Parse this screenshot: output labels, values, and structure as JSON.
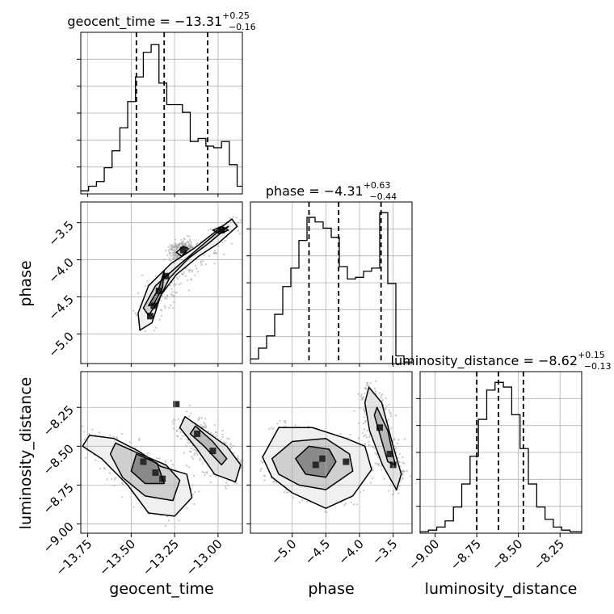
{
  "chart_data": {
    "type": "corner",
    "parameters": [
      "geocent_time",
      "phase",
      "luminosity_distance"
    ],
    "grid": true,
    "diagonal": [
      {
        "parameter": "geocent_time",
        "title": "geocent_time = −13.31",
        "title_sup": "+0.25",
        "title_sub": "−0.16",
        "xlim": [
          -13.79,
          -12.86
        ],
        "quantiles": [
          -13.47,
          -13.31,
          -13.06
        ],
        "bin_edges": [
          -13.79,
          -13.745,
          -13.7,
          -13.655,
          -13.61,
          -13.565,
          -13.52,
          -13.475,
          -13.43,
          -13.385,
          -13.34,
          -13.295,
          -13.25,
          -13.205,
          -13.16,
          -13.115,
          -13.07,
          -13.025,
          -12.98,
          -12.935,
          -12.89,
          -12.86
        ],
        "counts": [
          0.02,
          0.05,
          0.08,
          0.17,
          0.28,
          0.43,
          0.6,
          0.76,
          0.92,
          0.97,
          0.72,
          0.58,
          0.58,
          0.53,
          0.34,
          0.36,
          0.31,
          0.3,
          0.34,
          0.19,
          0.05
        ]
      },
      {
        "parameter": "phase",
        "title": "phase = −4.31",
        "title_sup": "+0.63",
        "title_sub": "−0.44",
        "xlim": [
          -5.62,
          -3.22
        ],
        "quantiles": [
          -4.75,
          -4.31,
          -3.68
        ],
        "bin_edges": [
          -5.62,
          -5.5,
          -5.38,
          -5.26,
          -5.14,
          -5.02,
          -4.9,
          -4.78,
          -4.66,
          -4.54,
          -4.42,
          -4.3,
          -4.18,
          -4.06,
          -3.94,
          -3.82,
          -3.7,
          -3.58,
          -3.46,
          -3.34,
          -3.22
        ],
        "counts": [
          0.03,
          0.1,
          0.18,
          0.32,
          0.5,
          0.62,
          0.8,
          0.95,
          0.92,
          0.88,
          0.82,
          0.63,
          0.55,
          0.56,
          0.6,
          0.62,
          0.98,
          0.52,
          0.05,
          0.01
        ]
      },
      {
        "parameter": "luminosity_distance",
        "title": "luminosity_distance = −8.62",
        "title_sup": "+0.15",
        "title_sub": "−0.13",
        "xlim": [
          -9.09,
          -8.12
        ],
        "quantiles": [
          -8.75,
          -8.62,
          -8.47
        ],
        "bin_edges": [
          -9.09,
          -9.04,
          -8.99,
          -8.94,
          -8.89,
          -8.84,
          -8.79,
          -8.74,
          -8.69,
          -8.64,
          -8.59,
          -8.54,
          -8.49,
          -8.44,
          -8.39,
          -8.34,
          -8.29,
          -8.24,
          -8.19,
          -8.14,
          -8.12
        ],
        "counts": [
          0.01,
          0.02,
          0.04,
          0.08,
          0.17,
          0.32,
          0.5,
          0.74,
          0.93,
          0.98,
          0.95,
          0.77,
          0.55,
          0.32,
          0.17,
          0.09,
          0.04,
          0.02,
          0.01,
          0.01
        ]
      }
    ],
    "pairs": [
      {
        "x": "geocent_time",
        "y": "phase",
        "xlim": [
          -13.79,
          -12.86
        ],
        "ylim": [
          -5.4,
          -3.22
        ],
        "ticks_y": [
          -5.0,
          -4.5,
          -4.0,
          -3.5
        ],
        "contours": [
          [
            [
              -13.46,
              -4.72
            ],
            [
              -13.4,
              -4.35
            ],
            [
              -13.27,
              -4.05
            ],
            [
              -13.14,
              -3.85
            ],
            [
              -13.02,
              -3.63
            ],
            [
              -12.92,
              -3.45
            ],
            [
              -12.89,
              -3.55
            ],
            [
              -13.0,
              -3.78
            ],
            [
              -13.11,
              -3.95
            ],
            [
              -13.24,
              -4.2
            ],
            [
              -13.33,
              -4.48
            ],
            [
              -13.38,
              -4.85
            ],
            [
              -13.45,
              -4.95
            ]
          ],
          [
            [
              -13.43,
              -4.65
            ],
            [
              -13.36,
              -4.35
            ],
            [
              -13.24,
              -4.1
            ],
            [
              -13.13,
              -3.88
            ],
            [
              -13.0,
              -3.62
            ],
            [
              -12.94,
              -3.55
            ],
            [
              -13.05,
              -3.77
            ],
            [
              -13.17,
              -3.98
            ],
            [
              -13.28,
              -4.25
            ],
            [
              -13.35,
              -4.58
            ],
            [
              -13.4,
              -4.75
            ]
          ],
          [
            [
              -13.4,
              -4.62
            ],
            [
              -13.34,
              -4.38
            ],
            [
              -13.31,
              -4.15
            ],
            [
              -13.32,
              -4.38
            ],
            [
              -13.37,
              -4.6
            ]
          ],
          [
            [
              -13.21,
              -3.95
            ],
            [
              -13.17,
              -3.85
            ],
            [
              -13.2,
              -3.82
            ],
            [
              -13.24,
              -3.9
            ]
          ],
          [
            [
              -13.03,
              -3.6
            ],
            [
              -12.98,
              -3.55
            ],
            [
              -12.94,
              -3.6
            ],
            [
              -12.99,
              -3.65
            ]
          ]
        ],
        "density_peaks": [
          [
            -13.34,
            -4.42
          ],
          [
            -13.3,
            -4.22
          ],
          [
            -13.37,
            -4.62
          ],
          [
            -13.2,
            -3.87
          ],
          [
            -13.39,
            -4.76
          ],
          [
            -12.98,
            -3.6
          ]
        ]
      },
      {
        "x": "geocent_time",
        "y": "luminosity_distance",
        "xlim": [
          -13.79,
          -12.86
        ],
        "ylim": [
          -9.06,
          -8.02
        ],
        "ticks_y": [
          -9.0,
          -8.75,
          -8.5,
          -8.25
        ],
        "contours": [
          [
            [
              -13.74,
              -8.43
            ],
            [
              -13.6,
              -8.45
            ],
            [
              -13.46,
              -8.53
            ],
            [
              -13.33,
              -8.63
            ],
            [
              -13.18,
              -8.68
            ],
            [
              -13.15,
              -8.83
            ],
            [
              -13.25,
              -8.95
            ],
            [
              -13.4,
              -8.93
            ],
            [
              -13.52,
              -8.75
            ],
            [
              -13.67,
              -8.58
            ],
            [
              -13.78,
              -8.5
            ]
          ],
          [
            [
              -13.59,
              -8.48
            ],
            [
              -13.45,
              -8.55
            ],
            [
              -13.3,
              -8.62
            ],
            [
              -13.22,
              -8.72
            ],
            [
              -13.26,
              -8.85
            ],
            [
              -13.42,
              -8.82
            ],
            [
              -13.55,
              -8.7
            ],
            [
              -13.62,
              -8.55
            ]
          ],
          [
            [
              -13.47,
              -8.55
            ],
            [
              -13.35,
              -8.61
            ],
            [
              -13.31,
              -8.74
            ],
            [
              -13.42,
              -8.74
            ],
            [
              -13.5,
              -8.66
            ]
          ],
          [
            [
              -13.19,
              -8.31
            ],
            [
              -13.1,
              -8.38
            ],
            [
              -12.95,
              -8.5
            ],
            [
              -12.87,
              -8.62
            ],
            [
              -12.9,
              -8.73
            ],
            [
              -13.02,
              -8.68
            ],
            [
              -13.12,
              -8.52
            ],
            [
              -13.22,
              -8.38
            ]
          ],
          [
            [
              -13.13,
              -8.37
            ],
            [
              -13.03,
              -8.47
            ],
            [
              -12.95,
              -8.58
            ],
            [
              -12.98,
              -8.62
            ],
            [
              -13.08,
              -8.5
            ],
            [
              -13.16,
              -8.42
            ]
          ]
        ],
        "density_peaks": [
          [
            -13.36,
            -8.67
          ],
          [
            -13.43,
            -8.6
          ],
          [
            -13.32,
            -8.71
          ],
          [
            -13.12,
            -8.42
          ],
          [
            -13.03,
            -8.53
          ],
          [
            -13.24,
            -8.23
          ]
        ]
      },
      {
        "x": "phase",
        "y": "luminosity_distance",
        "xlim": [
          -5.62,
          -3.22
        ],
        "ylim": [
          -9.06,
          -8.02
        ],
        "ticks_y": [],
        "contours": [
          [
            [
              -5.44,
              -8.57
            ],
            [
              -5.2,
              -8.38
            ],
            [
              -4.7,
              -8.38
            ],
            [
              -4.2,
              -8.45
            ],
            [
              -3.92,
              -8.5
            ],
            [
              -3.82,
              -8.65
            ],
            [
              -4.1,
              -8.82
            ],
            [
              -4.5,
              -8.9
            ],
            [
              -5.0,
              -8.8
            ],
            [
              -5.3,
              -8.7
            ]
          ],
          [
            [
              -5.3,
              -8.58
            ],
            [
              -5.0,
              -8.47
            ],
            [
              -4.5,
              -8.45
            ],
            [
              -4.15,
              -8.55
            ],
            [
              -4.1,
              -8.66
            ],
            [
              -4.5,
              -8.78
            ],
            [
              -4.9,
              -8.75
            ],
            [
              -5.2,
              -8.68
            ]
          ],
          [
            [
              -4.95,
              -8.58
            ],
            [
              -4.75,
              -8.5
            ],
            [
              -4.45,
              -8.52
            ],
            [
              -4.35,
              -8.6
            ],
            [
              -4.5,
              -8.7
            ],
            [
              -4.8,
              -8.68
            ]
          ],
          [
            [
              -3.86,
              -8.12
            ],
            [
              -3.67,
              -8.22
            ],
            [
              -3.5,
              -8.5
            ],
            [
              -3.38,
              -8.68
            ],
            [
              -3.45,
              -8.78
            ],
            [
              -3.66,
              -8.62
            ],
            [
              -3.85,
              -8.4
            ],
            [
              -3.92,
              -8.22
            ]
          ],
          [
            [
              -3.74,
              -8.25
            ],
            [
              -3.58,
              -8.4
            ],
            [
              -3.47,
              -8.62
            ],
            [
              -3.58,
              -8.6
            ],
            [
              -3.7,
              -8.42
            ],
            [
              -3.78,
              -8.3
            ]
          ]
        ],
        "density_peaks": [
          [
            -4.65,
            -8.62
          ],
          [
            -4.55,
            -8.58
          ],
          [
            -3.55,
            -8.55
          ],
          [
            -3.5,
            -8.62
          ],
          [
            -4.2,
            -8.6
          ],
          [
            -3.7,
            -8.38
          ]
        ]
      }
    ],
    "axis_labels": {
      "x": [
        "geocent_time",
        "phase",
        "luminosity_distance"
      ],
      "y": [
        "",
        "phase",
        "luminosity_distance"
      ]
    },
    "x_ticks": [
      [
        -13.75,
        -13.5,
        -13.25,
        -13.0
      ],
      [
        -5.0,
        -4.5,
        -4.0,
        -3.5
      ],
      [
        -9.0,
        -8.75,
        -8.5,
        -8.25
      ]
    ],
    "x_tick_labels": [
      [
        "−13.75",
        "−13.50",
        "−13.25",
        "−13.00"
      ],
      [
        "−5.0",
        "−4.5",
        "−4.0",
        "−3.5"
      ],
      [
        "−9.00",
        "−8.75",
        "−8.50",
        "−8.25"
      ]
    ],
    "y_tick_labels": {
      "phase": [
        "−5.0",
        "−4.5",
        "−4.0",
        "−3.5"
      ],
      "luminosity_distance": [
        "−9.00",
        "−8.75",
        "−8.50",
        "−8.25"
      ]
    }
  }
}
